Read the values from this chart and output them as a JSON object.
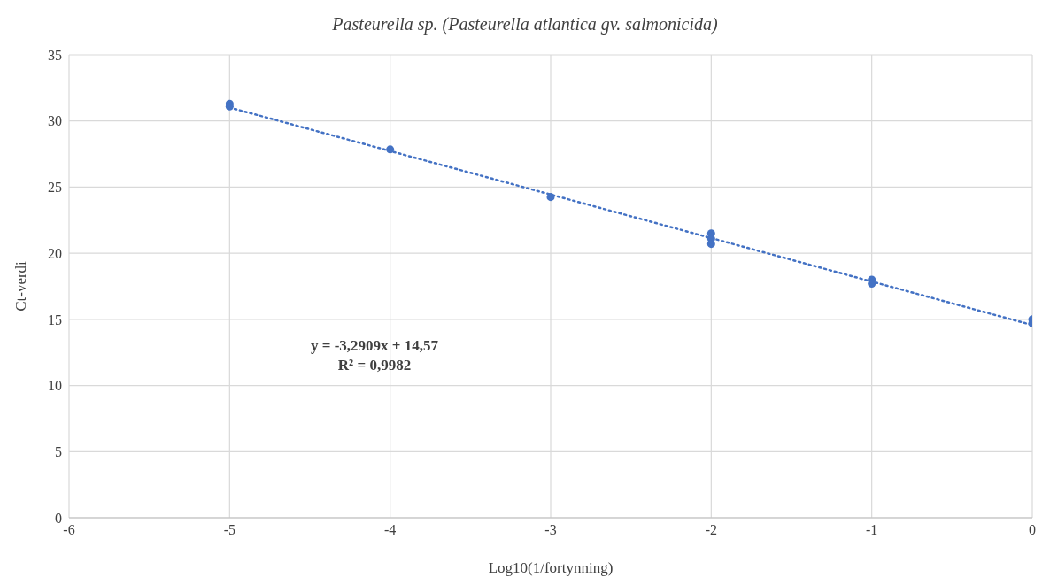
{
  "chart_data": {
    "type": "scatter",
    "title": "Pasteurella sp. (Pasteurella atlantica gv. salmonicida)",
    "xlabel": "Log10(1/fortynning)",
    "ylabel": "Ct-verdi",
    "x": [
      -5,
      -5,
      -4,
      -3,
      -2,
      -2,
      -2,
      -1,
      -1,
      0,
      0
    ],
    "series": [
      {
        "color": "#4472c4",
        "values": [
          31.3,
          31.1,
          27.85,
          24.25,
          21.5,
          21.1,
          20.7,
          18.0,
          17.7,
          15.0,
          14.7
        ]
      },
      {
        "type": "line",
        "color": "#4472c4",
        "x": [
          -5,
          0
        ],
        "values": [
          31.02,
          14.57
        ],
        "line_style": "dotted",
        "marker": "none"
      }
    ],
    "marker": "circle",
    "xlim": [
      -6,
      0
    ],
    "xticks": [
      -6,
      -5,
      -4,
      -3,
      -2,
      -1,
      0
    ],
    "ylim": [
      0,
      35
    ],
    "yticks": [
      0,
      5,
      10,
      15,
      20,
      25,
      30,
      35
    ],
    "grid": true,
    "annotations": [
      "y = -3,2909x + 14,57",
      "R² = 0,9982"
    ]
  }
}
